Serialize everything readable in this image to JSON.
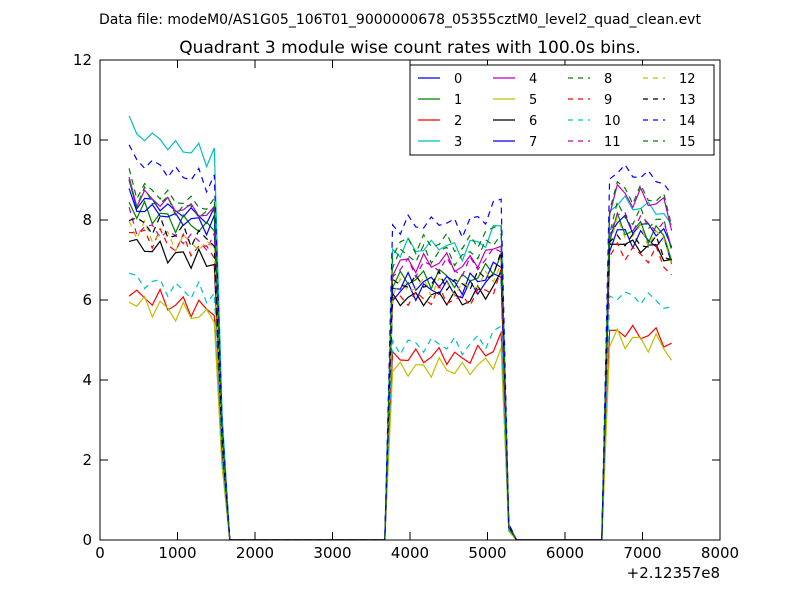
{
  "chart_data": {
    "type": "line",
    "suptitle": "Data file: modeM0/AS1G05_106T01_9000000678_05355cztM0_level2_quad_clean.evt",
    "title": "Quadrant 3 module wise count rates with 100.0s bins.",
    "xlabel": "",
    "ylabel": "",
    "x_offset_label": "+2.12357e8",
    "xlim": [
      0,
      8000
    ],
    "ylim": [
      0,
      12
    ],
    "xticks": [
      0,
      1000,
      2000,
      3000,
      4000,
      5000,
      6000,
      7000,
      8000
    ],
    "yticks": [
      0,
      2,
      4,
      6,
      8,
      10,
      12
    ],
    "grid": false,
    "legend": {
      "placement": "top-right",
      "columns": 4
    },
    "segments": [
      {
        "x": [
          375,
          475,
          575,
          675,
          775,
          875,
          975,
          1075,
          1175,
          1275,
          1375,
          1475,
          1575,
          1675
        ],
        "profile": [
          1,
          0.96,
          0.97,
          0.95,
          0.96,
          0.94,
          0.93,
          0.94,
          0.92,
          0.93,
          0.91,
          0.92,
          0.3,
          0
        ]
      },
      {
        "x": [
          1675,
          3675
        ],
        "profile": [
          0,
          0
        ]
      },
      {
        "x": [
          3675,
          3775,
          3875,
          3975,
          4075,
          4175,
          4275,
          4375,
          4475,
          4575,
          4675,
          4775,
          4875,
          4975,
          5075,
          5175,
          5275,
          5375
        ],
        "profile": [
          0,
          0.96,
          0.97,
          0.98,
          0.97,
          0.98,
          0.97,
          0.99,
          0.98,
          0.97,
          0.96,
          0.98,
          0.99,
          1.0,
          1.02,
          1.06,
          0.05,
          0
        ]
      },
      {
        "x": [
          5375,
          6475
        ],
        "profile": [
          0,
          0
        ]
      },
      {
        "x": [
          6475,
          6575,
          6675,
          6775,
          6875,
          6975,
          7075,
          7175,
          7275,
          7375
        ],
        "profile": [
          0,
          0.97,
          1.02,
          1.0,
          0.99,
          1.0,
          0.98,
          0.99,
          0.97,
          0.92
        ]
      }
    ],
    "series": [
      {
        "name": "0",
        "color": "#0000ff",
        "dash": "solid",
        "levels": [
          8.8,
          6.4,
          7.6
        ]
      },
      {
        "name": "1",
        "color": "#008000",
        "dash": "solid",
        "levels": [
          8.5,
          6.7,
          7.8
        ]
      },
      {
        "name": "2",
        "color": "#ff0000",
        "dash": "solid",
        "levels": [
          6.3,
          4.7,
          5.2
        ]
      },
      {
        "name": "3",
        "color": "#00bfbf",
        "dash": "solid",
        "levels": [
          10.5,
          7.5,
          8.4
        ]
      },
      {
        "name": "4",
        "color": "#bf00bf",
        "dash": "solid",
        "levels": [
          8.9,
          7.1,
          8.6
        ]
      },
      {
        "name": "5",
        "color": "#bfbf00",
        "dash": "solid",
        "levels": [
          6.1,
          4.4,
          5.0
        ]
      },
      {
        "name": "6",
        "color": "#000000",
        "dash": "solid",
        "levels": [
          7.6,
          6.2,
          7.4
        ]
      },
      {
        "name": "7",
        "color": "#0000ff",
        "dash": "solid",
        "levels": [
          8.6,
          6.6,
          7.9
        ]
      },
      {
        "name": "8",
        "color": "#008000",
        "dash": "dashed",
        "levels": [
          8.9,
          7.3,
          8.1
        ]
      },
      {
        "name": "9",
        "color": "#ff0000",
        "dash": "dashed",
        "levels": [
          7.9,
          6.2,
          7.2
        ]
      },
      {
        "name": "10",
        "color": "#00bfbf",
        "dash": "dashed",
        "levels": [
          6.7,
          5.0,
          6.1
        ]
      },
      {
        "name": "11",
        "color": "#bf00bf",
        "dash": "dashed",
        "levels": [
          8.1,
          7.0,
          8.0
        ]
      },
      {
        "name": "12",
        "color": "#bfbf00",
        "dash": "dashed",
        "levels": [
          8.0,
          6.5,
          7.7
        ]
      },
      {
        "name": "13",
        "color": "#000000",
        "dash": "dashed",
        "levels": [
          8.2,
          6.6,
          7.5
        ]
      },
      {
        "name": "14",
        "color": "#0000ff",
        "dash": "dashed",
        "levels": [
          9.8,
          8.1,
          9.2
        ]
      },
      {
        "name": "15",
        "color": "#008000",
        "dash": "dashed",
        "levels": [
          9.1,
          7.6,
          8.7
        ]
      }
    ]
  }
}
